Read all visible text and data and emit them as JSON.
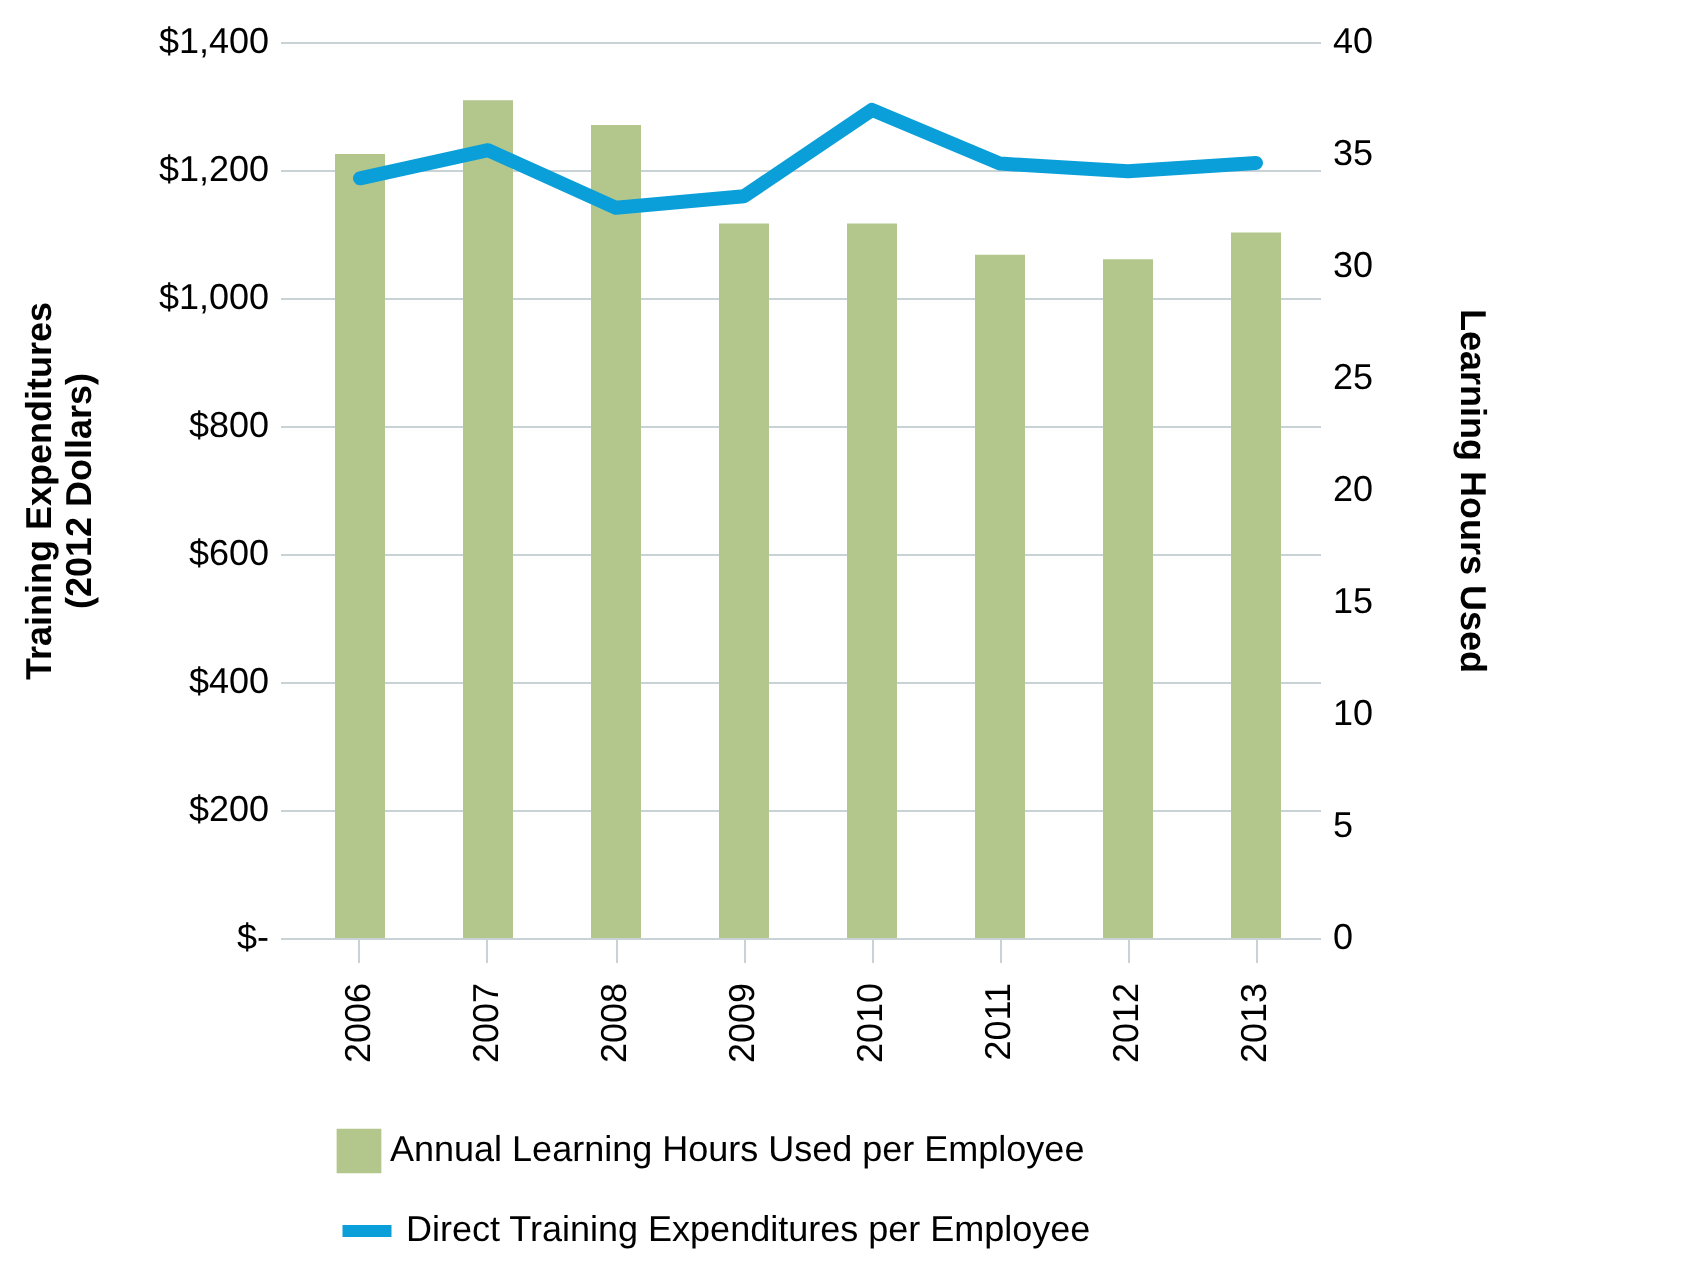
{
  "chart_data": {
    "type": "bar",
    "categories": [
      "2006",
      "2007",
      "2008",
      "2009",
      "2010",
      "2011",
      "2012",
      "2013"
    ],
    "series": [
      {
        "name": "Annual Learning Hours Used per Employee",
        "axis": "y2",
        "color": "#b3c78d",
        "values": [
          35.0,
          37.4,
          36.3,
          31.9,
          31.9,
          30.5,
          30.3,
          31.5
        ]
      },
      {
        "name": "Direct Training Expenditures per Employee",
        "type": "line",
        "color": "#0a9fd8",
        "values": [
          1187,
          1231,
          1141,
          1159,
          1294,
          1210,
          1198,
          1211
        ]
      }
    ],
    "ylabel": "Training Expenditures\n(2012 Dollars)",
    "y2label": "Learning Hours Used",
    "ylim": [
      0,
      1400
    ],
    "yticks": [
      {
        "value": 0,
        "label": "$-"
      },
      {
        "value": 200,
        "label": "$200"
      },
      {
        "value": 400,
        "label": "$400"
      },
      {
        "value": 600,
        "label": "$600"
      },
      {
        "value": 800,
        "label": "$800"
      },
      {
        "value": 1000,
        "label": "$1,000"
      },
      {
        "value": 1200,
        "label": "$1,200"
      },
      {
        "value": 1400,
        "label": "$1,400"
      }
    ],
    "y2lim": [
      0,
      40
    ],
    "y2ticks": [
      0,
      5,
      10,
      15,
      20,
      25,
      30,
      35,
      40
    ],
    "grid": "y",
    "legend": "bottom",
    "line_style": "solid",
    "marker": "none"
  }
}
